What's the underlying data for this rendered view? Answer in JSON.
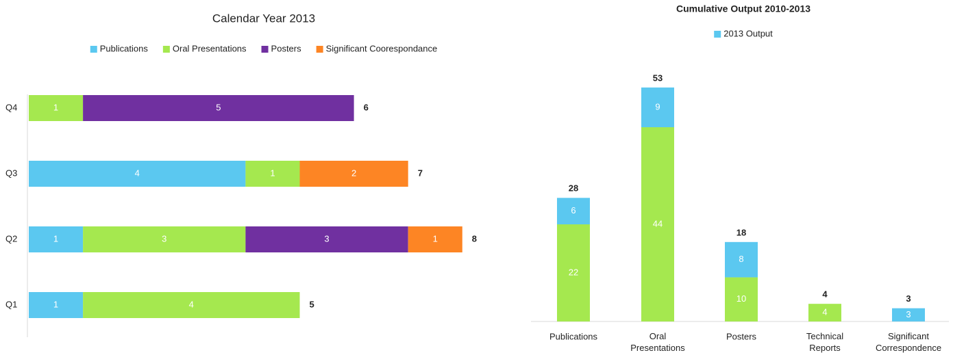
{
  "chart_data": [
    {
      "type": "hbar_stacked",
      "title": "Calendar Year 2013",
      "categories": [
        "Q1",
        "Q2",
        "Q3",
        "Q4"
      ],
      "series": [
        {
          "name": "Publications",
          "color": "#5bc8f0",
          "values": [
            1,
            1,
            4,
            null
          ]
        },
        {
          "name": "Oral Presentations",
          "color": "#a5e84f",
          "values": [
            4,
            3,
            1,
            1
          ]
        },
        {
          "name": "Posters",
          "color": "#7030a0",
          "values": [
            null,
            3,
            null,
            5
          ]
        },
        {
          "name": "Significant Coorespondance",
          "color": "#fd8524",
          "values": [
            null,
            1,
            2,
            null
          ]
        }
      ],
      "total_labels": [
        5,
        8,
        7,
        6
      ],
      "xlim": [
        0,
        10
      ]
    },
    {
      "type": "bar_stacked",
      "title": "Cumulative Output 2010-2013",
      "categories": [
        "Publications",
        "Oral Presentations",
        "Posters",
        "Technical Reports",
        "Significant Correspondence"
      ],
      "series": [
        {
          "color": "#a5e84f",
          "values": [
            22,
            44,
            10,
            4,
            null
          ]
        },
        {
          "name": "2013 Output",
          "color": "#5bc8f0",
          "values": [
            6,
            9,
            8,
            null,
            3
          ]
        }
      ],
      "total_labels": [
        28,
        53,
        18,
        4,
        3
      ],
      "ylim": [
        0,
        55
      ]
    }
  ]
}
